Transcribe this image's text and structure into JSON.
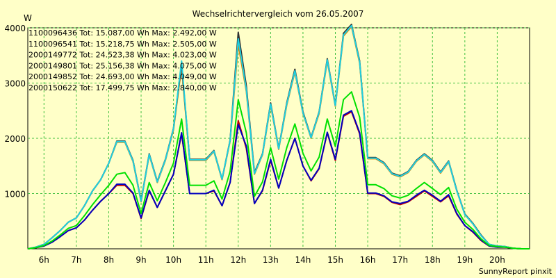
{
  "chart_data": {
    "type": "line",
    "title": "Wechselrichtervergleich vom 26.05.2007",
    "ylabel": "W",
    "xlabel": "",
    "footer": "SunnyReport pinxit",
    "ylim": [
      0,
      4000
    ],
    "yticks": [
      "1000",
      "2000",
      "3000",
      "4000"
    ],
    "xlim": [
      5.5,
      21.0
    ],
    "xticks": [
      "6h",
      "7h",
      "8h",
      "9h",
      "10h",
      "11h",
      "12h",
      "13h",
      "14h",
      "15h",
      "16h",
      "17h",
      "18h",
      "19h",
      "20h"
    ],
    "grid": true,
    "legend_position": "top-left inside plot",
    "x": [
      5.5,
      5.75,
      6.0,
      6.25,
      6.5,
      6.75,
      7.0,
      7.25,
      7.5,
      7.75,
      8.0,
      8.25,
      8.5,
      8.75,
      9.0,
      9.25,
      9.5,
      9.75,
      10.0,
      10.25,
      10.5,
      10.75,
      11.0,
      11.25,
      11.5,
      11.75,
      12.0,
      12.25,
      12.5,
      12.75,
      13.0,
      13.25,
      13.5,
      13.75,
      14.0,
      14.25,
      14.5,
      14.75,
      15.0,
      15.25,
      15.5,
      15.75,
      16.0,
      16.25,
      16.5,
      16.75,
      17.0,
      17.25,
      17.5,
      17.75,
      18.0,
      18.25,
      18.5,
      18.75,
      19.0,
      19.25,
      19.5,
      19.75,
      20.0,
      20.25,
      20.5,
      20.75,
      21.0
    ],
    "series": [
      {
        "name": "1100096436 Tot: 15.087,00 Wh Max: 2.492,00 W",
        "color": "#c00000",
        "values": [
          0,
          20,
          50,
          120,
          220,
          330,
          380,
          520,
          700,
          860,
          1000,
          1150,
          1150,
          1000,
          550,
          1050,
          750,
          1050,
          1350,
          2080,
          1000,
          1000,
          1000,
          1050,
          780,
          1200,
          2320,
          1820,
          820,
          1050,
          1600,
          1100,
          1600,
          2000,
          1500,
          1230,
          1450,
          2100,
          1600,
          2400,
          2480,
          2080,
          1000,
          1000,
          950,
          840,
          800,
          850,
          950,
          1050,
          950,
          850,
          960,
          630,
          420,
          300,
          150,
          50,
          30,
          30,
          10,
          0,
          0
        ]
      },
      {
        "name": "1100096541 Tot: 15.218,75 Wh Max: 2.505,00 W",
        "color": "#0000c0",
        "values": [
          0,
          20,
          50,
          120,
          220,
          330,
          380,
          520,
          700,
          860,
          1000,
          1170,
          1170,
          1010,
          560,
          1060,
          750,
          1050,
          1350,
          2100,
          1000,
          1000,
          1000,
          1060,
          780,
          1200,
          2250,
          1860,
          820,
          1060,
          1620,
          1100,
          1600,
          2000,
          1500,
          1240,
          1460,
          2110,
          1620,
          2420,
          2500,
          2100,
          1010,
          1010,
          960,
          850,
          820,
          860,
          970,
          1060,
          970,
          860,
          980,
          640,
          420,
          310,
          160,
          50,
          30,
          30,
          10,
          0,
          0
        ]
      },
      {
        "name": "2000149772 Tot: 24.523,38 Wh Max: 4.023,00 W",
        "color": "#e08000",
        "values": [
          0,
          30,
          80,
          200,
          330,
          480,
          560,
          780,
          1050,
          1250,
          1550,
          1930,
          1930,
          1580,
          850,
          1700,
          1200,
          1600,
          2150,
          3300,
          1600,
          1600,
          1600,
          1760,
          1250,
          1950,
          3700,
          2850,
          1350,
          1700,
          2600,
          1800,
          2600,
          3200,
          2450,
          2000,
          2450,
          3400,
          2580,
          3850,
          4020,
          3360,
          1630,
          1630,
          1540,
          1350,
          1300,
          1380,
          1580,
          1700,
          1580,
          1370,
          1570,
          1050,
          620,
          450,
          240,
          80,
          50,
          40,
          10,
          0,
          0
        ]
      },
      {
        "name": "2000149801 Tot: 25.156,38 Wh Max: 4.075,00 W",
        "color": "#303030",
        "values": [
          0,
          30,
          80,
          200,
          330,
          480,
          560,
          780,
          1050,
          1250,
          1550,
          1950,
          1950,
          1600,
          870,
          1720,
          1220,
          1620,
          2180,
          3350,
          1620,
          1620,
          1620,
          1780,
          1260,
          1970,
          3920,
          2950,
          1380,
          1720,
          2640,
          1820,
          2640,
          3250,
          2480,
          2020,
          2480,
          3440,
          2600,
          3900,
          4060,
          3400,
          1650,
          1650,
          1560,
          1370,
          1320,
          1400,
          1600,
          1720,
          1600,
          1390,
          1590,
          1060,
          630,
          460,
          250,
          80,
          50,
          40,
          10,
          0,
          0
        ]
      },
      {
        "name": "2000149852 Tot: 24.693,00 Wh Max: 4.049,00 W",
        "color": "#20d0e0",
        "values": [
          0,
          30,
          80,
          200,
          330,
          480,
          560,
          780,
          1050,
          1250,
          1550,
          1940,
          1940,
          1590,
          860,
          1710,
          1210,
          1610,
          2170,
          3400,
          1610,
          1610,
          1610,
          1770,
          1260,
          1960,
          3800,
          2880,
          1360,
          1710,
          2620,
          1810,
          2620,
          3220,
          2460,
          2010,
          2470,
          3420,
          2590,
          3870,
          4040,
          3380,
          1640,
          1640,
          1550,
          1360,
          1310,
          1390,
          1590,
          1710,
          1590,
          1380,
          1580,
          1050,
          620,
          450,
          240,
          80,
          50,
          40,
          10,
          0,
          0
        ]
      },
      {
        "name": "2000150622 Tot: 17.499,75 Wh Max: 2.840,00 W",
        "color": "#00e000",
        "values": [
          0,
          20,
          60,
          140,
          250,
          370,
          420,
          600,
          800,
          980,
          1150,
          1350,
          1380,
          1150,
          640,
          1200,
          870,
          1200,
          1550,
          2350,
          1150,
          1150,
          1150,
          1230,
          900,
          1400,
          2700,
          2100,
          950,
          1210,
          1830,
          1260,
          1830,
          2260,
          1730,
          1410,
          1660,
          2350,
          1850,
          2700,
          2840,
          2380,
          1160,
          1160,
          1090,
          960,
          920,
          970,
          1090,
          1200,
          1090,
          980,
          1110,
          720,
          480,
          350,
          180,
          60,
          40,
          30,
          10,
          0,
          0
        ]
      }
    ]
  }
}
